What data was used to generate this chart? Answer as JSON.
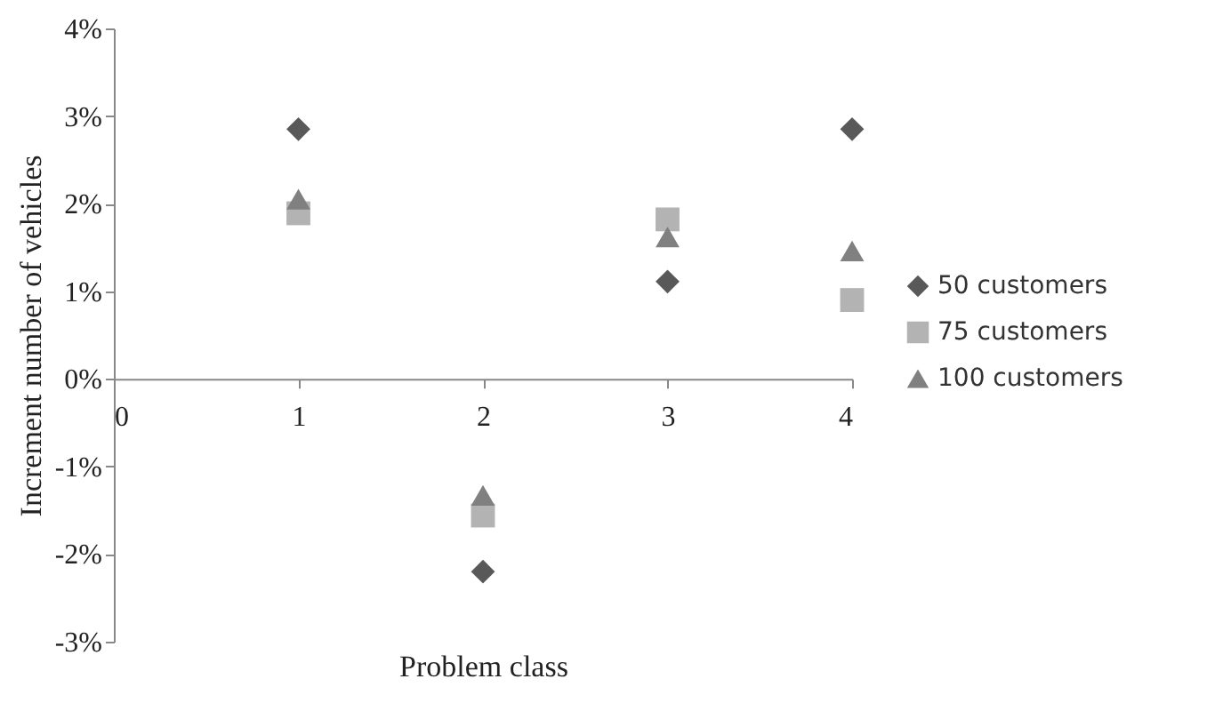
{
  "chart_data": {
    "type": "scatter",
    "xlabel": "Problem class",
    "ylabel": "Increment number of vehicles",
    "x": [
      1,
      2,
      3,
      4
    ],
    "series": [
      {
        "name": "50 customers",
        "color": "#595959",
        "marker": "diamond",
        "values": [
          2.85,
          -2.2,
          1.11,
          2.85
        ]
      },
      {
        "name": "75 customers",
        "color": "#b3b3b3",
        "marker": "square",
        "values": [
          1.89,
          -1.56,
          1.82,
          0.9
        ]
      },
      {
        "name": "100 customers",
        "color": "#808080",
        "marker": "triangle",
        "values": [
          2.05,
          -1.33,
          1.62,
          1.46
        ]
      }
    ],
    "xlim": [
      0,
      4
    ],
    "xticks": [
      0,
      1,
      2,
      3,
      4
    ],
    "ylim": [
      -3,
      4
    ],
    "yticks": [
      {
        "value": -3,
        "label": "-3%"
      },
      {
        "value": -2,
        "label": "-2%"
      },
      {
        "value": -1,
        "label": "-1%"
      },
      {
        "value": 0,
        "label": "0%"
      },
      {
        "value": 1,
        "label": "1%"
      },
      {
        "value": 2,
        "label": "2%"
      },
      {
        "value": 3,
        "label": "3%"
      },
      {
        "value": 4,
        "label": "4%"
      }
    ],
    "grid": false,
    "legend": "right"
  }
}
